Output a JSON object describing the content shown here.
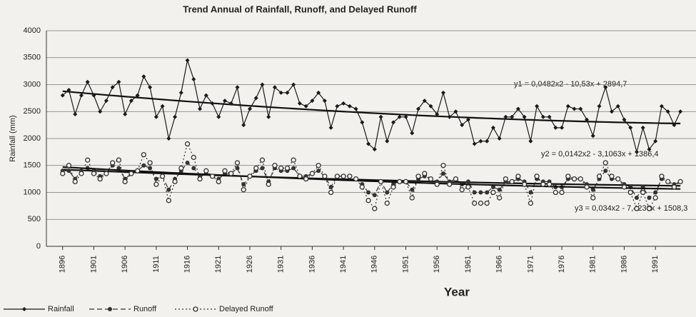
{
  "chart_data": {
    "type": "line",
    "title": "Trend Annual of Rainfall, Runoff, and Delayed Runoff",
    "x_label": "Year",
    "y_label": "Rainfall (mm)",
    "x": [
      1896,
      1897,
      1898,
      1899,
      1900,
      1901,
      1902,
      1903,
      1904,
      1905,
      1906,
      1907,
      1908,
      1909,
      1910,
      1911,
      1912,
      1913,
      1914,
      1915,
      1916,
      1917,
      1918,
      1919,
      1920,
      1921,
      1922,
      1923,
      1924,
      1925,
      1926,
      1927,
      1928,
      1929,
      1930,
      1931,
      1932,
      1933,
      1934,
      1935,
      1936,
      1937,
      1938,
      1939,
      1940,
      1941,
      1942,
      1943,
      1944,
      1945,
      1946,
      1947,
      1948,
      1949,
      1950,
      1951,
      1952,
      1953,
      1954,
      1955,
      1956,
      1957,
      1958,
      1959,
      1960,
      1961,
      1962,
      1963,
      1964,
      1965,
      1966,
      1967,
      1968,
      1969,
      1970,
      1971,
      1972,
      1973,
      1974,
      1975,
      1976,
      1977,
      1978,
      1979,
      1980,
      1981,
      1982,
      1983,
      1984,
      1985,
      1986,
      1987,
      1988,
      1989,
      1990,
      1991,
      1992,
      1993,
      1994,
      1995
    ],
    "series": [
      {
        "name": "Rainfall",
        "color": "#1a1a1a",
        "line_style": "solid",
        "marker": "diamond",
        "values": [
          2800,
          2900,
          2450,
          2800,
          3050,
          2800,
          2500,
          2700,
          2950,
          3050,
          2450,
          2700,
          2800,
          3150,
          2950,
          2400,
          2600,
          2000,
          2400,
          2850,
          3450,
          3100,
          2550,
          2800,
          2650,
          2400,
          2700,
          2650,
          2950,
          2250,
          2550,
          2750,
          3000,
          2400,
          2950,
          2850,
          2850,
          3000,
          2650,
          2600,
          2700,
          2850,
          2700,
          2200,
          2600,
          2650,
          2600,
          2550,
          2300,
          1900,
          1800,
          2400,
          1950,
          2300,
          2400,
          2400,
          2100,
          2550,
          2700,
          2600,
          2450,
          2850,
          2400,
          2500,
          2250,
          2350,
          1900,
          1950,
          1950,
          2200,
          2000,
          2400,
          2400,
          2550,
          2400,
          1950,
          2600,
          2400,
          2400,
          2200,
          2200,
          2600,
          2550,
          2550,
          2350,
          2050,
          2600,
          2950,
          2500,
          2600,
          2350,
          2200,
          1750,
          2200,
          1800,
          1950,
          2600,
          2500,
          2250,
          2500
        ]
      },
      {
        "name": "Runoff",
        "color": "#333333",
        "line_style": "dashed",
        "marker": "circle",
        "values": [
          1400,
          1400,
          1250,
          1400,
          1450,
          1400,
          1300,
          1350,
          1500,
          1450,
          1250,
          1350,
          1400,
          1500,
          1450,
          1250,
          1300,
          1050,
          1250,
          1400,
          1550,
          1450,
          1300,
          1350,
          1300,
          1250,
          1350,
          1350,
          1450,
          1150,
          1300,
          1400,
          1450,
          1200,
          1450,
          1400,
          1400,
          1450,
          1300,
          1300,
          1350,
          1400,
          1300,
          1100,
          1300,
          1300,
          1300,
          1250,
          1150,
          1000,
          950,
          1200,
          1000,
          1150,
          1200,
          1200,
          1050,
          1250,
          1300,
          1250,
          1200,
          1350,
          1200,
          1250,
          1150,
          1200,
          1000,
          1000,
          1000,
          1100,
          1050,
          1200,
          1200,
          1250,
          1200,
          1000,
          1250,
          1200,
          1200,
          1100,
          1100,
          1250,
          1250,
          1250,
          1150,
          1050,
          1250,
          1400,
          1250,
          1250,
          1150,
          1100,
          900,
          1100,
          900,
          1000,
          1250,
          1200,
          1150,
          1200
        ]
      },
      {
        "name": "Delayed Runoff",
        "color": "#333333",
        "line_style": "dotted",
        "marker": "open-circle",
        "values": [
          1350,
          1500,
          1200,
          1350,
          1600,
          1350,
          1250,
          1350,
          1550,
          1600,
          1200,
          1350,
          1400,
          1700,
          1550,
          1150,
          1300,
          850,
          1200,
          1450,
          1900,
          1650,
          1250,
          1400,
          1300,
          1200,
          1400,
          1350,
          1550,
          1050,
          1300,
          1450,
          1600,
          1150,
          1500,
          1450,
          1450,
          1600,
          1300,
          1250,
          1350,
          1500,
          1300,
          1000,
          1300,
          1300,
          1300,
          1250,
          1100,
          850,
          700,
          1200,
          800,
          1100,
          1200,
          1200,
          900,
          1300,
          1350,
          1250,
          1150,
          1500,
          1150,
          1250,
          1050,
          1100,
          800,
          800,
          800,
          1000,
          900,
          1250,
          1200,
          1300,
          1150,
          800,
          1300,
          1150,
          1150,
          1000,
          1000,
          1300,
          1250,
          1250,
          1100,
          900,
          1300,
          1550,
          1300,
          1250,
          1100,
          1000,
          700,
          1000,
          700,
          900,
          1300,
          1200,
          1100,
          1200
        ]
      }
    ],
    "annotations": [
      "y1 = 0,0482x2 - 10,53x + 2894,7",
      "y2 = 0,0142x2 - 3,1063x + 1386,4",
      "y3 = 0,034x2 - 7,4236x + 1508,3"
    ],
    "trendline": "polynomial-2",
    "xlim": [
      1893.4,
      1997.5
    ],
    "ylim": [
      0,
      4000
    ],
    "xticks": [
      1896,
      1901,
      1906,
      1911,
      1916,
      1921,
      1926,
      1931,
      1936,
      1941,
      1946,
      1951,
      1956,
      1961,
      1966,
      1971,
      1976,
      1981,
      1986,
      1991
    ],
    "yticks": [
      0,
      500,
      1000,
      1500,
      2000,
      2500,
      3000,
      3500,
      4000
    ],
    "grid": true
  }
}
